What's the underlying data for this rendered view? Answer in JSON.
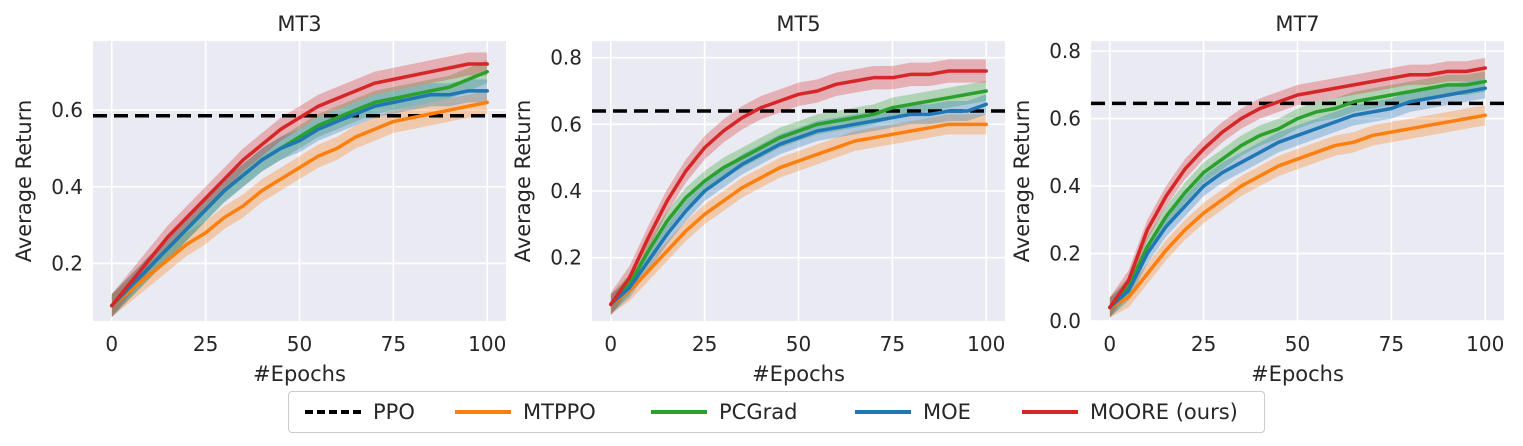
{
  "figure": {
    "legend": [
      {
        "label": "PPO",
        "color": "#000000",
        "style": "dashed"
      },
      {
        "label": "MTPPO",
        "color": "#ff7f0e",
        "style": "solid"
      },
      {
        "label": "PCGrad",
        "color": "#2ca02c",
        "style": "solid"
      },
      {
        "label": "MOE",
        "color": "#1f77b4",
        "style": "solid"
      },
      {
        "label": "MOORE (ours)",
        "color": "#d62728",
        "style": "solid"
      }
    ]
  },
  "chart_data": [
    {
      "type": "line",
      "title": "MT3",
      "xlabel": "#Epochs",
      "ylabel": "Average Return",
      "xlim": [
        -5,
        105
      ],
      "ylim": [
        0.05,
        0.78
      ],
      "xticks": [
        0,
        25,
        50,
        75,
        100
      ],
      "yticks": [
        0.2,
        0.4,
        0.6
      ],
      "ytick_labels": [
        "0.2",
        "0.4",
        "0.6"
      ],
      "hline": {
        "name": "PPO",
        "y": 0.585,
        "color": "#000000"
      },
      "x": [
        0,
        5,
        10,
        15,
        20,
        25,
        30,
        35,
        40,
        45,
        50,
        55,
        60,
        65,
        70,
        75,
        80,
        85,
        90,
        95,
        100
      ],
      "series": [
        {
          "name": "MTPPO",
          "color": "#ff7f0e",
          "band": 0.03,
          "values": [
            0.09,
            0.13,
            0.17,
            0.21,
            0.25,
            0.28,
            0.32,
            0.35,
            0.39,
            0.42,
            0.45,
            0.48,
            0.5,
            0.53,
            0.55,
            0.57,
            0.58,
            0.59,
            0.6,
            0.61,
            0.62
          ]
        },
        {
          "name": "PCGrad",
          "color": "#2ca02c",
          "band": 0.03,
          "values": [
            0.09,
            0.14,
            0.19,
            0.24,
            0.29,
            0.34,
            0.39,
            0.43,
            0.47,
            0.5,
            0.53,
            0.56,
            0.58,
            0.6,
            0.62,
            0.63,
            0.64,
            0.65,
            0.66,
            0.68,
            0.7
          ]
        },
        {
          "name": "MOE",
          "color": "#1f77b4",
          "band": 0.03,
          "values": [
            0.09,
            0.14,
            0.19,
            0.24,
            0.29,
            0.34,
            0.39,
            0.43,
            0.47,
            0.5,
            0.52,
            0.55,
            0.57,
            0.59,
            0.61,
            0.62,
            0.63,
            0.64,
            0.64,
            0.65,
            0.65
          ]
        },
        {
          "name": "MOORE (ours)",
          "color": "#d62728",
          "band": 0.03,
          "values": [
            0.09,
            0.15,
            0.21,
            0.27,
            0.32,
            0.37,
            0.42,
            0.47,
            0.51,
            0.55,
            0.58,
            0.61,
            0.63,
            0.65,
            0.67,
            0.68,
            0.69,
            0.7,
            0.71,
            0.72,
            0.72
          ]
        }
      ]
    },
    {
      "type": "line",
      "title": "MT5",
      "xlabel": "#Epochs",
      "ylabel": "Average Return",
      "xlim": [
        -5,
        105
      ],
      "ylim": [
        0.01,
        0.85
      ],
      "xticks": [
        0,
        25,
        50,
        75,
        100
      ],
      "yticks": [
        0.2,
        0.4,
        0.6,
        0.8
      ],
      "ytick_labels": [
        "0.2",
        "0.4",
        "0.6",
        "0.8"
      ],
      "hline": {
        "name": "PPO",
        "y": 0.64,
        "color": "#000000"
      },
      "x": [
        0,
        5,
        10,
        15,
        20,
        25,
        30,
        35,
        40,
        45,
        50,
        55,
        60,
        65,
        70,
        75,
        80,
        85,
        90,
        95,
        100
      ],
      "series": [
        {
          "name": "MTPPO",
          "color": "#ff7f0e",
          "band": 0.03,
          "values": [
            0.06,
            0.1,
            0.16,
            0.22,
            0.28,
            0.33,
            0.37,
            0.41,
            0.44,
            0.47,
            0.49,
            0.51,
            0.53,
            0.55,
            0.56,
            0.57,
            0.58,
            0.59,
            0.6,
            0.6,
            0.6
          ]
        },
        {
          "name": "PCGrad",
          "color": "#2ca02c",
          "band": 0.03,
          "values": [
            0.06,
            0.12,
            0.22,
            0.31,
            0.38,
            0.43,
            0.47,
            0.5,
            0.53,
            0.56,
            0.58,
            0.6,
            0.61,
            0.62,
            0.63,
            0.65,
            0.66,
            0.67,
            0.68,
            0.69,
            0.7
          ]
        },
        {
          "name": "MOE",
          "color": "#1f77b4",
          "band": 0.03,
          "values": [
            0.06,
            0.11,
            0.19,
            0.27,
            0.34,
            0.4,
            0.44,
            0.48,
            0.51,
            0.54,
            0.56,
            0.58,
            0.59,
            0.6,
            0.61,
            0.62,
            0.63,
            0.63,
            0.64,
            0.64,
            0.66
          ]
        },
        {
          "name": "MOORE (ours)",
          "color": "#d62728",
          "band": 0.035,
          "values": [
            0.06,
            0.14,
            0.26,
            0.37,
            0.46,
            0.53,
            0.58,
            0.62,
            0.65,
            0.67,
            0.69,
            0.7,
            0.72,
            0.73,
            0.74,
            0.74,
            0.75,
            0.75,
            0.76,
            0.76,
            0.76
          ]
        }
      ]
    },
    {
      "type": "line",
      "title": "MT7",
      "xlabel": "#Epochs",
      "ylabel": "Average Return",
      "xlim": [
        -5,
        105
      ],
      "ylim": [
        0.0,
        0.83
      ],
      "xticks": [
        0,
        25,
        50,
        75,
        100
      ],
      "yticks": [
        0.0,
        0.2,
        0.4,
        0.6,
        0.8
      ],
      "ytick_labels": [
        "0.0",
        "0.2",
        "0.4",
        "0.6",
        "0.8"
      ],
      "hline": {
        "name": "PPO",
        "y": 0.645,
        "color": "#000000"
      },
      "x": [
        0,
        5,
        10,
        15,
        20,
        25,
        30,
        35,
        40,
        45,
        50,
        55,
        60,
        65,
        70,
        75,
        80,
        85,
        90,
        95,
        100
      ],
      "series": [
        {
          "name": "MTPPO",
          "color": "#ff7f0e",
          "band": 0.03,
          "values": [
            0.04,
            0.07,
            0.14,
            0.21,
            0.27,
            0.32,
            0.36,
            0.4,
            0.43,
            0.46,
            0.48,
            0.5,
            0.52,
            0.53,
            0.55,
            0.56,
            0.57,
            0.58,
            0.59,
            0.6,
            0.61
          ]
        },
        {
          "name": "PCGrad",
          "color": "#2ca02c",
          "band": 0.03,
          "values": [
            0.04,
            0.1,
            0.22,
            0.31,
            0.38,
            0.44,
            0.48,
            0.52,
            0.55,
            0.57,
            0.6,
            0.62,
            0.63,
            0.65,
            0.66,
            0.67,
            0.68,
            0.69,
            0.7,
            0.7,
            0.71
          ]
        },
        {
          "name": "MOE",
          "color": "#1f77b4",
          "band": 0.03,
          "values": [
            0.04,
            0.09,
            0.2,
            0.28,
            0.34,
            0.4,
            0.44,
            0.47,
            0.5,
            0.53,
            0.55,
            0.57,
            0.59,
            0.61,
            0.62,
            0.63,
            0.65,
            0.66,
            0.67,
            0.68,
            0.69
          ]
        },
        {
          "name": "MOORE (ours)",
          "color": "#d62728",
          "band": 0.03,
          "values": [
            0.04,
            0.12,
            0.27,
            0.37,
            0.45,
            0.51,
            0.56,
            0.6,
            0.63,
            0.65,
            0.67,
            0.68,
            0.69,
            0.7,
            0.71,
            0.72,
            0.73,
            0.73,
            0.74,
            0.74,
            0.75
          ]
        }
      ]
    }
  ]
}
